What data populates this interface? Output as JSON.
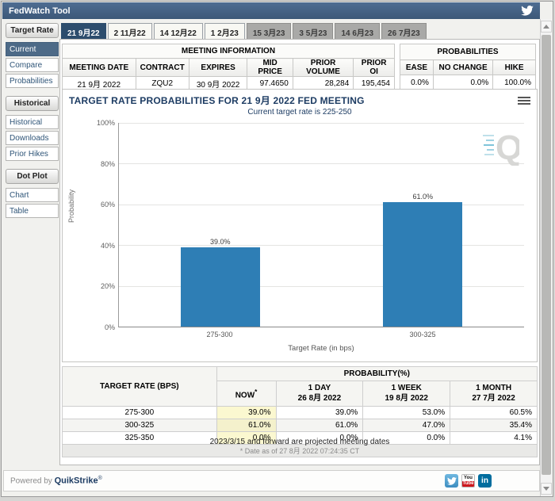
{
  "header": {
    "title": "FedWatch Tool"
  },
  "tabs": [
    {
      "label": "21 9月22",
      "state": "selected"
    },
    {
      "label": "2 11月22",
      "state": "normal"
    },
    {
      "label": "14 12月22",
      "state": "normal"
    },
    {
      "label": "1 2月23",
      "state": "normal"
    },
    {
      "label": "15 3月23",
      "state": "disabled"
    },
    {
      "label": "3 5月23",
      "state": "disabled"
    },
    {
      "label": "14 6月23",
      "state": "disabled"
    },
    {
      "label": "26 7月23",
      "state": "disabled"
    }
  ],
  "sidebar": {
    "sections": [
      {
        "header": "Target Rate",
        "items": [
          {
            "label": "Current",
            "selected": true
          },
          {
            "label": "Compare",
            "selected": false
          },
          {
            "label": "Probabilities",
            "selected": false
          }
        ]
      },
      {
        "header": "Historical",
        "items": [
          {
            "label": "Historical",
            "selected": false
          },
          {
            "label": "Downloads",
            "selected": false
          },
          {
            "label": "Prior Hikes",
            "selected": false
          }
        ]
      },
      {
        "header": "Dot Plot",
        "items": [
          {
            "label": "Chart",
            "selected": false
          },
          {
            "label": "Table",
            "selected": false
          }
        ]
      }
    ]
  },
  "meeting_info": {
    "title": "MEETING INFORMATION",
    "columns": [
      "MEETING DATE",
      "CONTRACT",
      "EXPIRES",
      "MID PRICE",
      "PRIOR VOLUME",
      "PRIOR OI"
    ],
    "values": [
      "21 9月 2022",
      "ZQU2",
      "30 9月 2022",
      "97.4650",
      "28,284",
      "195,454"
    ]
  },
  "probabilities_summary": {
    "title": "PROBABILITIES",
    "columns": [
      "EASE",
      "NO CHANGE",
      "HIKE"
    ],
    "values": [
      "0.0%",
      "0.0%",
      "100.0%"
    ]
  },
  "chart_data": {
    "type": "bar",
    "title": "TARGET RATE PROBABILITIES FOR 21 9月 2022 FED MEETING",
    "subtitle": "Current target rate is 225-250",
    "categories": [
      "275-300",
      "300-325"
    ],
    "values": [
      39.0,
      61.0
    ],
    "value_labels": [
      "39.0%",
      "61.0%"
    ],
    "xlabel": "Target Rate (in bps)",
    "ylabel": "Probability",
    "ylim": [
      0,
      100
    ],
    "yticks": [
      "100%",
      "80%",
      "60%",
      "40%",
      "20%",
      "0%"
    ],
    "grid": true,
    "legend": "none",
    "bar_color": "#2e7eb5"
  },
  "probability_table": {
    "col1_header": "TARGET RATE (BPS)",
    "group_header": "PROBABILITY(%)",
    "now_header": {
      "label": "NOW",
      "sup": "*"
    },
    "period_headers": [
      {
        "line1": "1 DAY",
        "line2": "26 8月 2022"
      },
      {
        "line1": "1 WEEK",
        "line2": "19 8月 2022"
      },
      {
        "line1": "1 MONTH",
        "line2": "27 7月 2022"
      }
    ],
    "rows": [
      [
        "275-300",
        "39.0%",
        "39.0%",
        "53.0%",
        "60.5%"
      ],
      [
        "300-325",
        "61.0%",
        "61.0%",
        "47.0%",
        "35.4%"
      ],
      [
        "325-350",
        "0.0%",
        "0.0%",
        "0.0%",
        "4.1%"
      ]
    ],
    "footnote": "* Date as of 27 8月 2022 07:24:35 CT"
  },
  "notes": {
    "projected": "2023/3/15 and forward are projected meeting dates"
  },
  "footer": {
    "powered_prefix": "Powered by",
    "brand": "QuikStrike",
    "reg_mark": "®"
  },
  "social": {
    "youtube_top": "You",
    "youtube_bottom": "Tube",
    "linkedin": "in"
  },
  "watermark_letter": "Q"
}
